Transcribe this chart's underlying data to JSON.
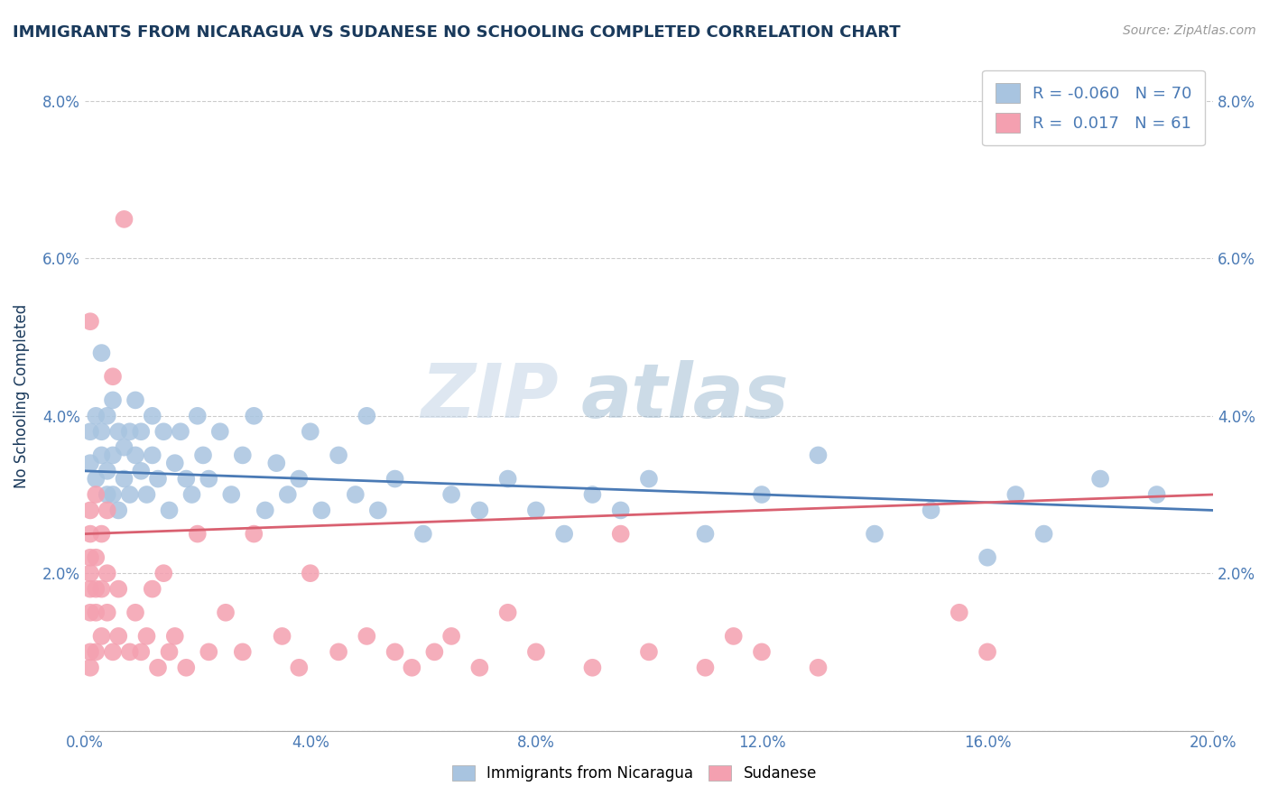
{
  "title": "IMMIGRANTS FROM NICARAGUA VS SUDANESE NO SCHOOLING COMPLETED CORRELATION CHART",
  "source_text": "Source: ZipAtlas.com",
  "ylabel": "No Schooling Completed",
  "xlim": [
    0.0,
    0.2
  ],
  "ylim": [
    0.0,
    0.085
  ],
  "xticks": [
    0.0,
    0.04,
    0.08,
    0.12,
    0.16,
    0.2
  ],
  "xtick_labels": [
    "0.0%",
    "4.0%",
    "8.0%",
    "12.0%",
    "16.0%",
    "20.0%"
  ],
  "yticks": [
    0.0,
    0.02,
    0.04,
    0.06,
    0.08
  ],
  "ytick_labels": [
    "",
    "2.0%",
    "4.0%",
    "6.0%",
    "8.0%"
  ],
  "blue_color": "#a8c4e0",
  "pink_color": "#f4a0b0",
  "blue_line_color": "#4a7ab5",
  "pink_line_color": "#d96070",
  "blue_R": -0.06,
  "blue_N": 70,
  "pink_R": 0.017,
  "pink_N": 61,
  "legend_label_blue": "Immigrants from Nicaragua",
  "legend_label_pink": "Sudanese",
  "watermark": "ZIPatlas",
  "title_color": "#1a3a5c",
  "axis_color": "#4a7ab5",
  "blue_x": [
    0.001,
    0.001,
    0.002,
    0.002,
    0.003,
    0.003,
    0.003,
    0.004,
    0.004,
    0.004,
    0.005,
    0.005,
    0.005,
    0.006,
    0.006,
    0.007,
    0.007,
    0.008,
    0.008,
    0.009,
    0.009,
    0.01,
    0.01,
    0.011,
    0.012,
    0.012,
    0.013,
    0.014,
    0.015,
    0.016,
    0.017,
    0.018,
    0.019,
    0.02,
    0.021,
    0.022,
    0.024,
    0.026,
    0.028,
    0.03,
    0.032,
    0.034,
    0.036,
    0.038,
    0.04,
    0.042,
    0.045,
    0.048,
    0.05,
    0.052,
    0.055,
    0.06,
    0.065,
    0.07,
    0.075,
    0.08,
    0.085,
    0.09,
    0.095,
    0.1,
    0.11,
    0.12,
    0.13,
    0.14,
    0.15,
    0.16,
    0.165,
    0.17,
    0.18,
    0.19
  ],
  "blue_y": [
    0.034,
    0.038,
    0.032,
    0.04,
    0.035,
    0.038,
    0.048,
    0.033,
    0.04,
    0.03,
    0.035,
    0.042,
    0.03,
    0.038,
    0.028,
    0.032,
    0.036,
    0.03,
    0.038,
    0.035,
    0.042,
    0.033,
    0.038,
    0.03,
    0.035,
    0.04,
    0.032,
    0.038,
    0.028,
    0.034,
    0.038,
    0.032,
    0.03,
    0.04,
    0.035,
    0.032,
    0.038,
    0.03,
    0.035,
    0.04,
    0.028,
    0.034,
    0.03,
    0.032,
    0.038,
    0.028,
    0.035,
    0.03,
    0.04,
    0.028,
    0.032,
    0.025,
    0.03,
    0.028,
    0.032,
    0.028,
    0.025,
    0.03,
    0.028,
    0.032,
    0.025,
    0.03,
    0.035,
    0.025,
    0.028,
    0.022,
    0.03,
    0.025,
    0.032,
    0.03
  ],
  "pink_x": [
    0.001,
    0.001,
    0.001,
    0.001,
    0.001,
    0.001,
    0.001,
    0.001,
    0.001,
    0.002,
    0.002,
    0.002,
    0.002,
    0.002,
    0.003,
    0.003,
    0.003,
    0.004,
    0.004,
    0.004,
    0.005,
    0.005,
    0.006,
    0.006,
    0.007,
    0.008,
    0.009,
    0.01,
    0.011,
    0.012,
    0.013,
    0.014,
    0.015,
    0.016,
    0.018,
    0.02,
    0.022,
    0.025,
    0.028,
    0.03,
    0.035,
    0.038,
    0.04,
    0.045,
    0.05,
    0.055,
    0.058,
    0.062,
    0.065,
    0.07,
    0.075,
    0.08,
    0.09,
    0.095,
    0.1,
    0.11,
    0.115,
    0.12,
    0.13,
    0.155,
    0.16
  ],
  "pink_y": [
    0.008,
    0.01,
    0.015,
    0.018,
    0.02,
    0.022,
    0.025,
    0.028,
    0.052,
    0.01,
    0.015,
    0.018,
    0.022,
    0.03,
    0.012,
    0.018,
    0.025,
    0.015,
    0.02,
    0.028,
    0.01,
    0.045,
    0.012,
    0.018,
    0.065,
    0.01,
    0.015,
    0.01,
    0.012,
    0.018,
    0.008,
    0.02,
    0.01,
    0.012,
    0.008,
    0.025,
    0.01,
    0.015,
    0.01,
    0.025,
    0.012,
    0.008,
    0.02,
    0.01,
    0.012,
    0.01,
    0.008,
    0.01,
    0.012,
    0.008,
    0.015,
    0.01,
    0.008,
    0.025,
    0.01,
    0.008,
    0.012,
    0.01,
    0.008,
    0.015,
    0.01
  ]
}
